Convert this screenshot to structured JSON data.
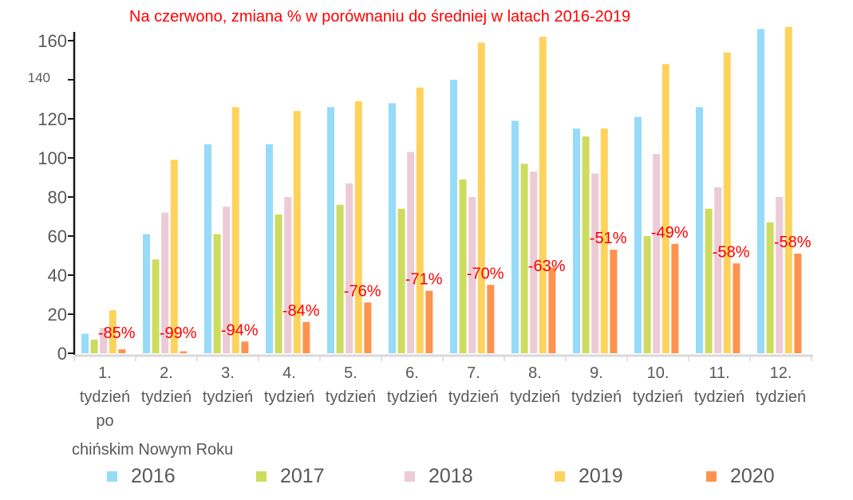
{
  "chart_data": {
    "type": "bar",
    "title": "Na czerwono, zmiana % w porównaniu do średniej w latach 2016-2019",
    "xlabel": "",
    "ylabel": "",
    "ylim": [
      0,
      170
    ],
    "yticks": [
      0,
      20,
      40,
      60,
      80,
      100,
      120,
      140,
      160
    ],
    "ytick_labels": [
      "0",
      "20",
      "40",
      "60",
      "80",
      "100",
      "120",
      "140",
      "160"
    ],
    "grid": false,
    "legend_position": "bottom",
    "categories": [
      [
        "1.",
        "tydzień",
        "po"
      ],
      [
        "2.",
        "tydzień"
      ],
      [
        "3.",
        "tydzień"
      ],
      [
        "4.",
        "tydzień"
      ],
      [
        "5.",
        "tydzień"
      ],
      [
        "6.",
        "tydzień"
      ],
      [
        "7.",
        "tydzień"
      ],
      [
        "8.",
        "tydzień"
      ],
      [
        "9.",
        "tydzień"
      ],
      [
        "10.",
        "tydzień"
      ],
      [
        "11.",
        "tydzień"
      ],
      [
        "12.",
        "tydzień"
      ]
    ],
    "category_note": "chińskim Nowym Roku",
    "series": [
      {
        "name": "2016",
        "color": "#97dbf8",
        "values": [
          10,
          61,
          107,
          107,
          126,
          128,
          140,
          119,
          115,
          121,
          126,
          166
        ]
      },
      {
        "name": "2017",
        "color": "#cddc5f",
        "values": [
          7,
          48,
          61,
          71,
          76,
          74,
          89,
          97,
          111,
          60,
          74,
          67
        ]
      },
      {
        "name": "2018",
        "color": "#eccbd6",
        "values": [
          13,
          72,
          75,
          80,
          87,
          103,
          80,
          93,
          92,
          102,
          85,
          80
        ]
      },
      {
        "name": "2019",
        "color": "#fdd35e",
        "values": [
          22,
          99,
          126,
          124,
          129,
          136,
          159,
          162,
          115,
          148,
          154,
          167
        ]
      },
      {
        "name": "2020",
        "color": "#fd934f",
        "values": [
          2,
          1,
          6,
          16,
          26,
          32,
          35,
          44,
          53,
          56,
          46,
          51
        ]
      }
    ],
    "annotations": [
      "-85%",
      "-99%",
      "-94%",
      "-84%",
      "-76%",
      "-71%",
      "-70%",
      "-63%",
      "-51%",
      "-49%",
      "-58%",
      "-58%"
    ],
    "annotation_color": "#ff0000"
  }
}
